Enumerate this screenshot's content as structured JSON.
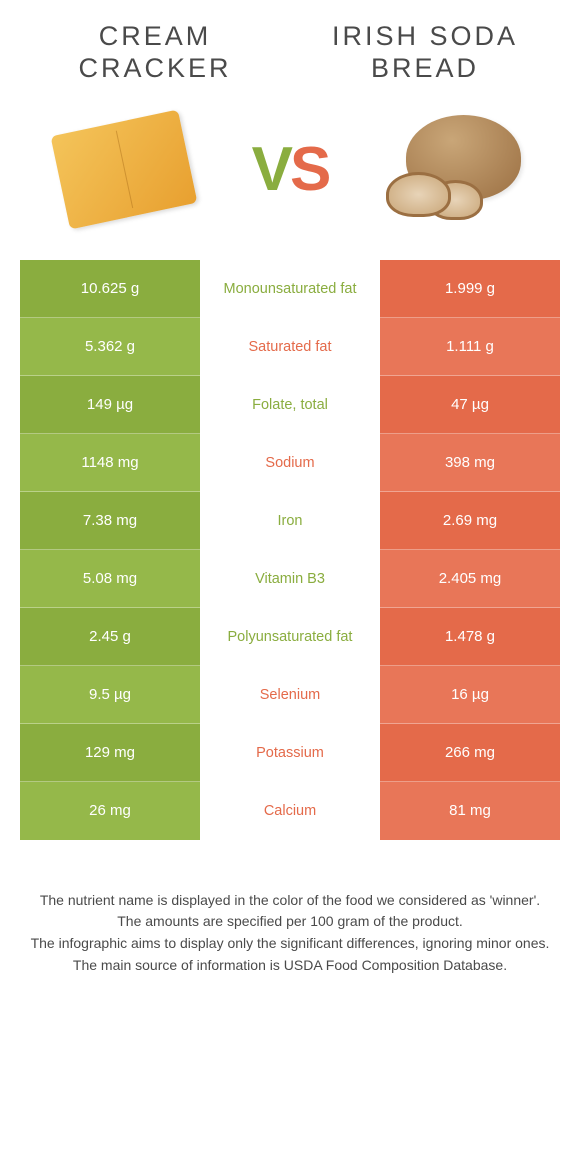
{
  "header": {
    "leftTitle": "Cream Cracker",
    "rightTitle": "Irish Soda Bread",
    "vsV": "V",
    "vsS": "S"
  },
  "colors": {
    "green": "#8aad3f",
    "greenAlt": "#95b84a",
    "orange": "#e46a4a",
    "orangeAlt": "#e87658",
    "text": "#4a4a4a",
    "bg": "#ffffff"
  },
  "rows": [
    {
      "left": "10.625 g",
      "label": "Monounsaturated fat",
      "right": "1.999 g",
      "winner": "green"
    },
    {
      "left": "5.362 g",
      "label": "Saturated fat",
      "right": "1.111 g",
      "winner": "orange"
    },
    {
      "left": "149 µg",
      "label": "Folate, total",
      "right": "47 µg",
      "winner": "green"
    },
    {
      "left": "1148 mg",
      "label": "Sodium",
      "right": "398 mg",
      "winner": "orange"
    },
    {
      "left": "7.38 mg",
      "label": "Iron",
      "right": "2.69 mg",
      "winner": "green"
    },
    {
      "left": "5.08 mg",
      "label": "Vitamin B3",
      "right": "2.405 mg",
      "winner": "green"
    },
    {
      "left": "2.45 g",
      "label": "Polyunsaturated fat",
      "right": "1.478 g",
      "winner": "green"
    },
    {
      "left": "9.5 µg",
      "label": "Selenium",
      "right": "16 µg",
      "winner": "orange"
    },
    {
      "left": "129 mg",
      "label": "Potassium",
      "right": "266 mg",
      "winner": "orange"
    },
    {
      "left": "26 mg",
      "label": "Calcium",
      "right": "81 mg",
      "winner": "orange"
    }
  ],
  "caption": {
    "line1": "The nutrient name is displayed in the color of the food we considered as 'winner'.",
    "line2": "The amounts are specified per 100 gram of the product.",
    "line3": "The infographic aims to display only the significant differences, ignoring minor ones.",
    "line4": "The main source of information is USDA Food Composition Database."
  }
}
